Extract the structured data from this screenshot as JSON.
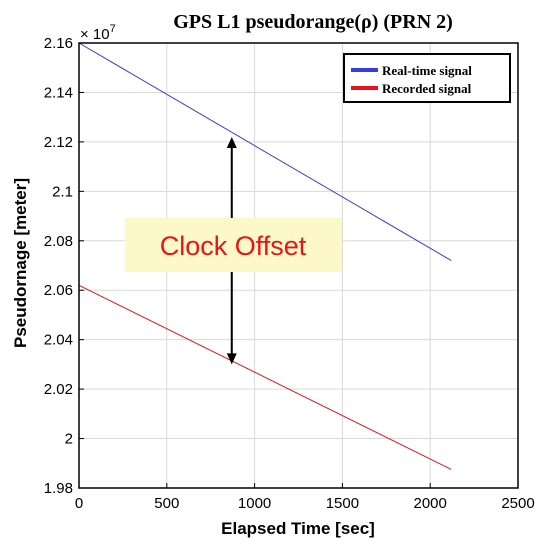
{
  "chart_data": {
    "type": "line",
    "title": "GPS L1 pseudorange(ρ) (PRN 2)",
    "xlabel": "Elapsed Time [sec]",
    "ylabel": "Pseudornage [meter]",
    "xlim": [
      0,
      2500
    ],
    "ylim": [
      1.98,
      2.16
    ],
    "y_exponent_label": "× 10",
    "y_exponent_power": "7",
    "xticks": [
      "0",
      "500",
      "1000",
      "1500",
      "2000",
      "2500"
    ],
    "yticks": [
      "1.98",
      "2",
      "2.02",
      "2.04",
      "2.06",
      "2.08",
      "2.1",
      "2.12",
      "2.14",
      "2.16"
    ],
    "grid": true,
    "legend_placement": "top-right",
    "series": [
      {
        "name": "Real-time signal",
        "color": "#3a3adf",
        "x": [
          0,
          2120
        ],
        "y": [
          2.16,
          2.072
        ]
      },
      {
        "name": "Recorded signal",
        "color": "#e8141a",
        "x": [
          0,
          2120
        ],
        "y": [
          2.062,
          1.9875
        ]
      }
    ],
    "annotation": {
      "text": "Clock Offset",
      "arrow_x": 870,
      "arrow_y_top": 2.122,
      "arrow_y_bottom": 2.03,
      "box_color": "#fdf8c8",
      "text_color": "#e8141a"
    }
  }
}
